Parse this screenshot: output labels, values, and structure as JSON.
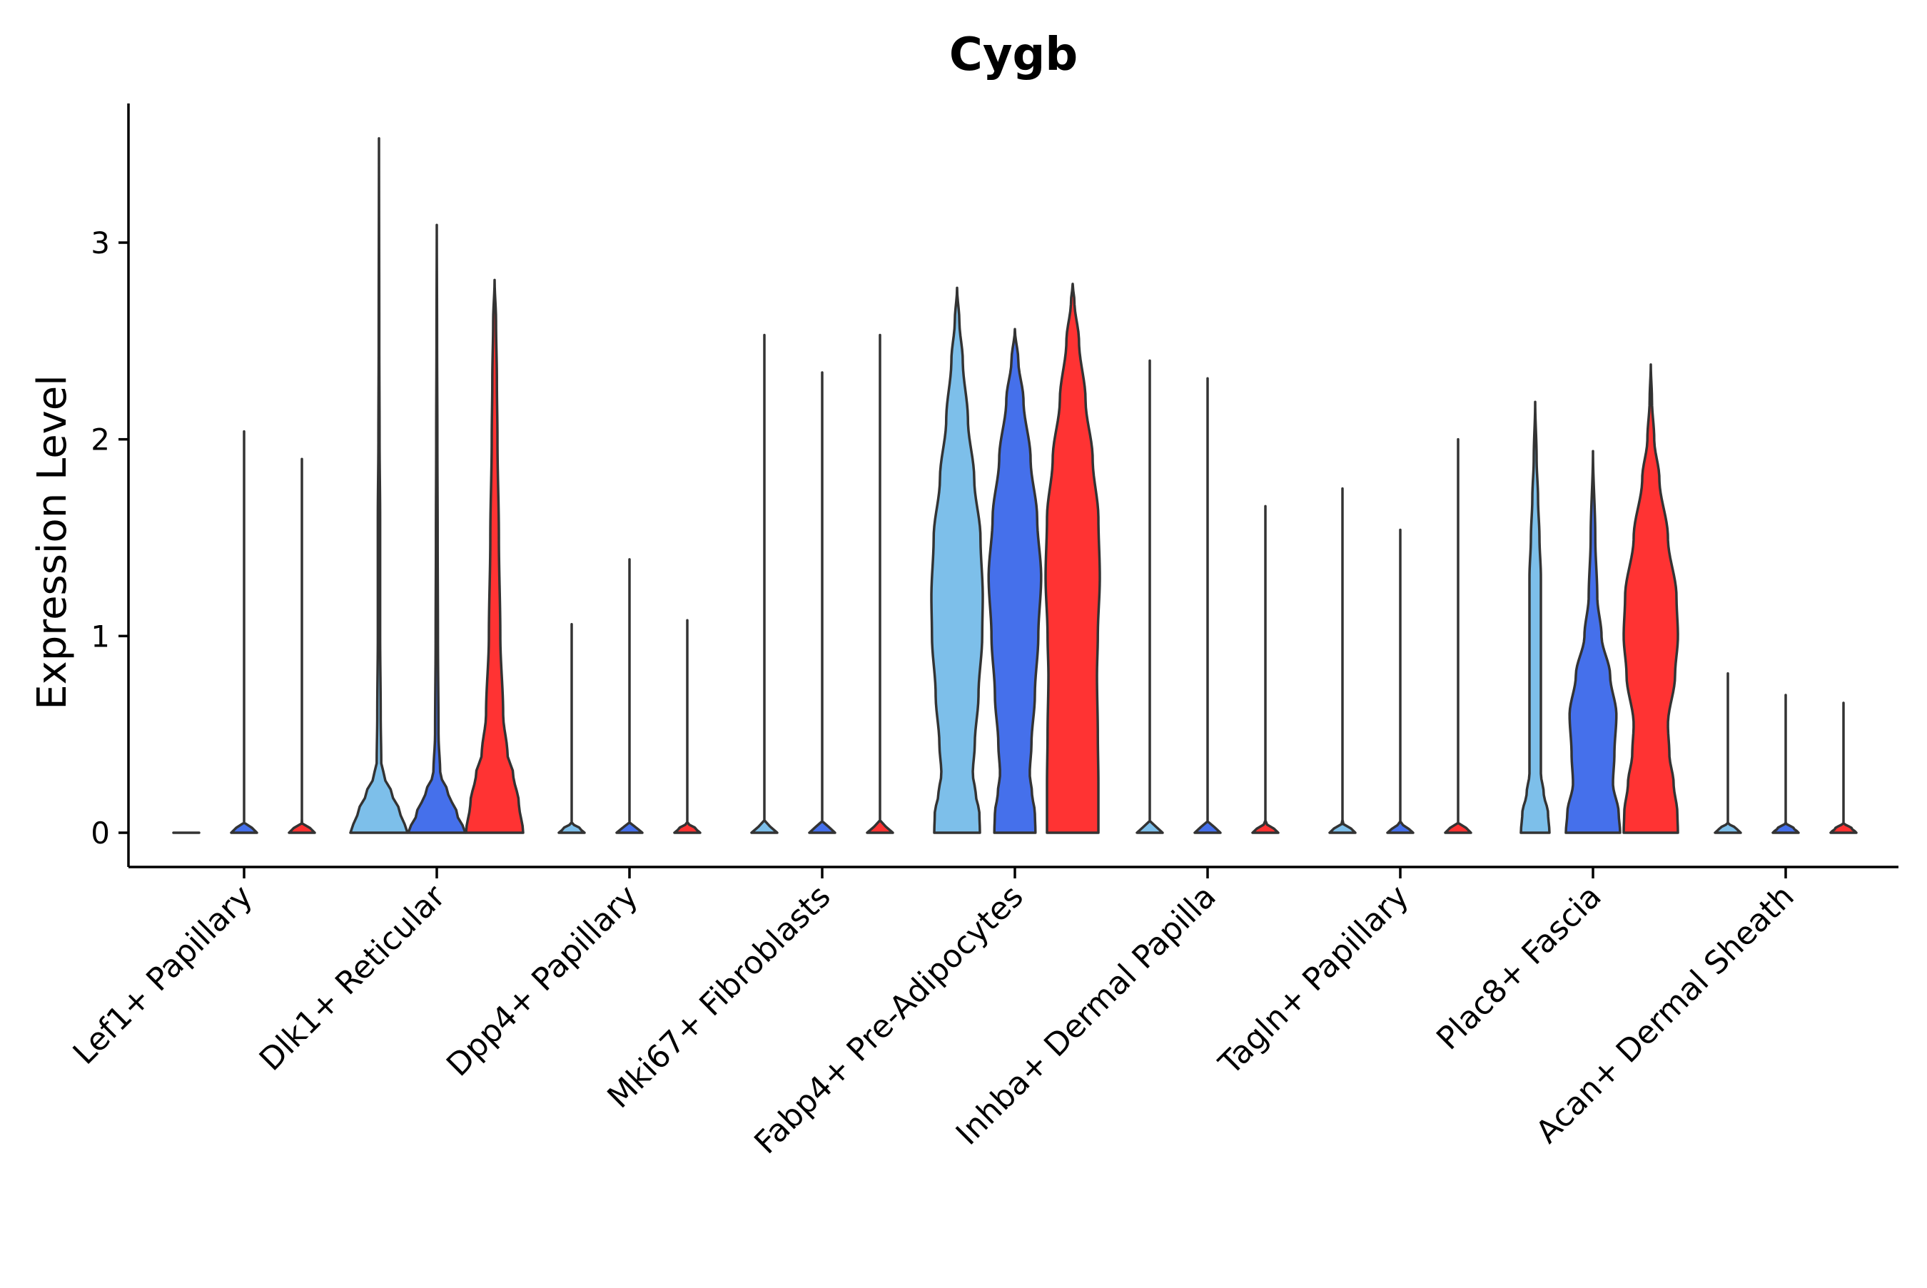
{
  "chart_data": {
    "type": "violin",
    "title": "Cygb",
    "xlabel": "",
    "ylabel": "Expression Level",
    "ylim": [
      -0.18,
      3.7
    ],
    "yticks": [
      0,
      1,
      2,
      3
    ],
    "grid": false,
    "legend": "none",
    "series_colors": [
      "#7DBFEA",
      "#4570EB",
      "#FF3333"
    ],
    "categories": [
      "Lef1+ Papillary",
      "Dlk1+ Reticular",
      "Dpp4+ Papillary",
      "Mki67+ Fibroblasts",
      "Fabp4+ Pre-Adipocytes",
      "Inhba+ Dermal Papilla",
      "Tagln+ Papillary",
      "Plac8+ Fascia",
      "Acan+ Dermal Sheath"
    ],
    "violins": [
      [
        {
          "max": 0.0,
          "profile": [
            [
              0,
              0.45
            ],
            [
              0.02,
              0.3
            ],
            [
              0.05,
              0.1
            ],
            [
              0.1,
              0.0
            ]
          ]
        },
        {
          "max": 2.04,
          "profile": [
            [
              0,
              0.45
            ],
            [
              0.02,
              0.3
            ],
            [
              0.05,
              0.0
            ],
            [
              2.04,
              0.0
            ]
          ]
        },
        {
          "max": 1.9,
          "profile": [
            [
              0,
              0.45
            ],
            [
              0.02,
              0.3
            ],
            [
              0.05,
              0.0
            ],
            [
              1.9,
              0.0
            ]
          ]
        }
      ],
      [
        {
          "max": 3.53,
          "profile": [
            [
              0,
              1.0
            ],
            [
              0.1,
              0.75
            ],
            [
              0.2,
              0.45
            ],
            [
              0.28,
              0.2
            ],
            [
              0.35,
              0.08
            ],
            [
              0.6,
              0.06
            ],
            [
              1.0,
              0.04
            ],
            [
              1.6,
              0.04
            ],
            [
              2.0,
              0.02
            ],
            [
              2.5,
              0.01
            ],
            [
              3.53,
              0.0
            ]
          ]
        },
        {
          "max": 3.09,
          "profile": [
            [
              0,
              1.0
            ],
            [
              0.1,
              0.7
            ],
            [
              0.2,
              0.4
            ],
            [
              0.3,
              0.12
            ],
            [
              0.5,
              0.06
            ],
            [
              1.0,
              0.04
            ],
            [
              1.5,
              0.03
            ],
            [
              2.0,
              0.02
            ],
            [
              2.5,
              0.01
            ],
            [
              3.09,
              0.0
            ]
          ]
        },
        {
          "max": 2.81,
          "profile": [
            [
              0,
              1.0
            ],
            [
              0.15,
              0.85
            ],
            [
              0.3,
              0.65
            ],
            [
              0.4,
              0.45
            ],
            [
              0.6,
              0.3
            ],
            [
              1.0,
              0.2
            ],
            [
              1.5,
              0.15
            ],
            [
              2.0,
              0.1
            ],
            [
              2.3,
              0.08
            ],
            [
              2.6,
              0.05
            ],
            [
              2.81,
              0.0
            ]
          ]
        }
      ],
      [
        {
          "max": 1.06,
          "profile": [
            [
              0,
              0.45
            ],
            [
              0.02,
              0.3
            ],
            [
              0.05,
              0.0
            ],
            [
              1.06,
              0.0
            ]
          ]
        },
        {
          "max": 1.39,
          "profile": [
            [
              0,
              0.45
            ],
            [
              0.02,
              0.3
            ],
            [
              0.05,
              0.0
            ],
            [
              1.39,
              0.0
            ]
          ]
        },
        {
          "max": 1.08,
          "profile": [
            [
              0,
              0.45
            ],
            [
              0.02,
              0.3
            ],
            [
              0.05,
              0.0
            ],
            [
              1.08,
              0.0
            ]
          ]
        }
      ],
      [
        {
          "max": 2.53,
          "profile": [
            [
              0,
              0.45
            ],
            [
              0.02,
              0.3
            ],
            [
              0.05,
              0.0
            ],
            [
              2.53,
              0.0
            ]
          ]
        },
        {
          "max": 2.34,
          "profile": [
            [
              0,
              0.45
            ],
            [
              0.02,
              0.3
            ],
            [
              0.05,
              0.0
            ],
            [
              2.34,
              0.0
            ]
          ]
        },
        {
          "max": 2.53,
          "profile": [
            [
              0,
              0.45
            ],
            [
              0.02,
              0.3
            ],
            [
              0.05,
              0.0
            ],
            [
              2.53,
              0.0
            ]
          ]
        }
      ],
      [
        {
          "max": 2.77,
          "profile": [
            [
              0,
              0.8
            ],
            [
              0.1,
              0.78
            ],
            [
              0.2,
              0.65
            ],
            [
              0.3,
              0.55
            ],
            [
              0.45,
              0.62
            ],
            [
              0.7,
              0.75
            ],
            [
              1.0,
              0.88
            ],
            [
              1.2,
              0.9
            ],
            [
              1.5,
              0.82
            ],
            [
              1.8,
              0.6
            ],
            [
              2.1,
              0.38
            ],
            [
              2.4,
              0.2
            ],
            [
              2.6,
              0.08
            ],
            [
              2.77,
              0.0
            ]
          ]
        },
        {
          "max": 2.56,
          "profile": [
            [
              0,
              0.72
            ],
            [
              0.1,
              0.7
            ],
            [
              0.2,
              0.6
            ],
            [
              0.3,
              0.52
            ],
            [
              0.45,
              0.58
            ],
            [
              0.7,
              0.7
            ],
            [
              1.0,
              0.82
            ],
            [
              1.3,
              0.92
            ],
            [
              1.6,
              0.78
            ],
            [
              1.9,
              0.55
            ],
            [
              2.2,
              0.3
            ],
            [
              2.4,
              0.12
            ],
            [
              2.56,
              0.0
            ]
          ]
        },
        {
          "max": 2.79,
          "profile": [
            [
              0,
              0.9
            ],
            [
              0.25,
              0.9
            ],
            [
              0.5,
              0.88
            ],
            [
              0.8,
              0.85
            ],
            [
              1.0,
              0.88
            ],
            [
              1.3,
              0.95
            ],
            [
              1.6,
              0.9
            ],
            [
              1.9,
              0.7
            ],
            [
              2.2,
              0.45
            ],
            [
              2.5,
              0.22
            ],
            [
              2.7,
              0.06
            ],
            [
              2.79,
              0.0
            ]
          ]
        }
      ],
      [
        {
          "max": 2.4,
          "profile": [
            [
              0,
              0.45
            ],
            [
              0.02,
              0.3
            ],
            [
              0.05,
              0.0
            ],
            [
              2.4,
              0.0
            ]
          ]
        },
        {
          "max": 2.31,
          "profile": [
            [
              0,
              0.45
            ],
            [
              0.02,
              0.3
            ],
            [
              0.05,
              0.0
            ],
            [
              2.31,
              0.0
            ]
          ]
        },
        {
          "max": 1.66,
          "profile": [
            [
              0,
              0.45
            ],
            [
              0.02,
              0.3
            ],
            [
              0.05,
              0.0
            ],
            [
              1.66,
              0.0
            ]
          ]
        }
      ],
      [
        {
          "max": 1.75,
          "profile": [
            [
              0,
              0.45
            ],
            [
              0.02,
              0.3
            ],
            [
              0.05,
              0.0
            ],
            [
              1.75,
              0.0
            ]
          ]
        },
        {
          "max": 1.54,
          "profile": [
            [
              0,
              0.45
            ],
            [
              0.02,
              0.3
            ],
            [
              0.05,
              0.0
            ],
            [
              1.54,
              0.0
            ]
          ]
        },
        {
          "max": 2.0,
          "profile": [
            [
              0,
              0.45
            ],
            [
              0.02,
              0.3
            ],
            [
              0.05,
              0.0
            ],
            [
              2.0,
              0.0
            ]
          ]
        }
      ],
      [
        {
          "max": 2.19,
          "profile": [
            [
              0,
              0.5
            ],
            [
              0.1,
              0.45
            ],
            [
              0.2,
              0.3
            ],
            [
              0.3,
              0.2
            ],
            [
              0.5,
              0.2
            ],
            [
              0.8,
              0.2
            ],
            [
              1.0,
              0.2
            ],
            [
              1.3,
              0.2
            ],
            [
              1.5,
              0.15
            ],
            [
              1.7,
              0.1
            ],
            [
              1.9,
              0.05
            ],
            [
              2.19,
              0.0
            ]
          ]
        },
        {
          "max": 1.94,
          "profile": [
            [
              0,
              0.95
            ],
            [
              0.1,
              0.9
            ],
            [
              0.25,
              0.7
            ],
            [
              0.4,
              0.75
            ],
            [
              0.6,
              0.82
            ],
            [
              0.8,
              0.6
            ],
            [
              1.0,
              0.3
            ],
            [
              1.2,
              0.15
            ],
            [
              1.5,
              0.08
            ],
            [
              1.94,
              0.0
            ]
          ]
        },
        {
          "max": 2.38,
          "profile": [
            [
              0,
              0.95
            ],
            [
              0.1,
              0.93
            ],
            [
              0.25,
              0.8
            ],
            [
              0.4,
              0.65
            ],
            [
              0.55,
              0.6
            ],
            [
              0.8,
              0.85
            ],
            [
              1.0,
              0.95
            ],
            [
              1.2,
              0.9
            ],
            [
              1.5,
              0.6
            ],
            [
              1.8,
              0.3
            ],
            [
              2.0,
              0.12
            ],
            [
              2.2,
              0.04
            ],
            [
              2.38,
              0.0
            ]
          ]
        }
      ],
      [
        {
          "max": 0.81,
          "profile": [
            [
              0,
              0.45
            ],
            [
              0.02,
              0.3
            ],
            [
              0.05,
              0.0
            ],
            [
              0.81,
              0.0
            ]
          ]
        },
        {
          "max": 0.7,
          "profile": [
            [
              0,
              0.45
            ],
            [
              0.02,
              0.3
            ],
            [
              0.05,
              0.0
            ],
            [
              0.7,
              0.0
            ]
          ]
        },
        {
          "max": 0.66,
          "profile": [
            [
              0,
              0.45
            ],
            [
              0.02,
              0.3
            ],
            [
              0.05,
              0.0
            ],
            [
              0.66,
              0.0
            ]
          ]
        }
      ]
    ]
  }
}
